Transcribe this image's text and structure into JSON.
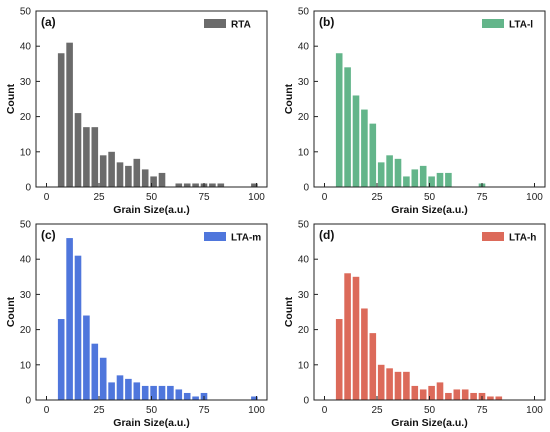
{
  "chart_data": [
    {
      "type": "bar",
      "panel": "(a)",
      "legend": "RTA",
      "color": "#6b6b6b",
      "xlabel": "Grain Size(a.u.)",
      "ylabel": "Count",
      "xlim": [
        -5,
        105
      ],
      "ylim": [
        0,
        50
      ],
      "xticks": [
        0,
        25,
        50,
        75,
        100
      ],
      "yticks": [
        0,
        10,
        20,
        30,
        40,
        50
      ],
      "bin_width": 4,
      "x": [
        7,
        11,
        15,
        19,
        23,
        27,
        31,
        35,
        39,
        43,
        47,
        51,
        55,
        59,
        63,
        67,
        71,
        75,
        79,
        83,
        87,
        91,
        95,
        99
      ],
      "values": [
        38,
        41,
        21,
        17,
        17,
        9,
        10,
        7,
        6,
        8,
        5,
        3,
        4,
        0,
        1,
        1,
        1,
        1,
        1,
        1,
        0,
        0,
        0,
        1
      ]
    },
    {
      "type": "bar",
      "panel": "(b)",
      "legend": "LTA-l",
      "color": "#63b58a",
      "xlabel": "Grain Size(a.u.)",
      "ylabel": "Count",
      "xlim": [
        -5,
        105
      ],
      "ylim": [
        0,
        50
      ],
      "xticks": [
        0,
        25,
        50,
        75,
        100
      ],
      "yticks": [
        0,
        10,
        20,
        30,
        40,
        50
      ],
      "bin_width": 4,
      "x": [
        7,
        11,
        15,
        19,
        23,
        27,
        31,
        35,
        39,
        43,
        47,
        51,
        55,
        59,
        63,
        67,
        71,
        75,
        79,
        83,
        87,
        91,
        95,
        99
      ],
      "values": [
        38,
        34,
        26,
        22,
        18,
        7,
        9,
        8,
        3,
        5,
        6,
        3,
        4,
        4,
        0,
        0,
        0,
        1,
        0,
        0,
        0,
        0,
        0,
        0
      ]
    },
    {
      "type": "bar",
      "panel": "(c)",
      "legend": "LTA-m",
      "color": "#4f76dc",
      "xlabel": "Grain Size(a.u.)",
      "ylabel": "Count",
      "xlim": [
        -5,
        105
      ],
      "ylim": [
        0,
        50
      ],
      "xticks": [
        0,
        25,
        50,
        75,
        100
      ],
      "yticks": [
        0,
        10,
        20,
        30,
        40,
        50
      ],
      "bin_width": 4,
      "x": [
        7,
        11,
        15,
        19,
        23,
        27,
        31,
        35,
        39,
        43,
        47,
        51,
        55,
        59,
        63,
        67,
        71,
        75,
        79,
        83,
        87,
        91,
        95,
        99
      ],
      "values": [
        23,
        46,
        41,
        24,
        16,
        12,
        5,
        7,
        6,
        5,
        4,
        4,
        4,
        4,
        3,
        2,
        1,
        2,
        0,
        0,
        0,
        0,
        0,
        1
      ]
    },
    {
      "type": "bar",
      "panel": "(d)",
      "legend": "LTA-h",
      "color": "#dc6a5a",
      "xlabel": "Grain Size(a.u.)",
      "ylabel": "Count",
      "xlim": [
        -5,
        105
      ],
      "ylim": [
        0,
        50
      ],
      "xticks": [
        0,
        25,
        50,
        75,
        100
      ],
      "yticks": [
        0,
        10,
        20,
        30,
        40,
        50
      ],
      "bin_width": 4,
      "x": [
        7,
        11,
        15,
        19,
        23,
        27,
        31,
        35,
        39,
        43,
        47,
        51,
        55,
        59,
        63,
        67,
        71,
        75,
        79,
        83,
        87,
        91,
        95,
        99
      ],
      "values": [
        23,
        36,
        35,
        26,
        19,
        10,
        9,
        8,
        8,
        4,
        3,
        4,
        5,
        2,
        3,
        3,
        2,
        2,
        1,
        1,
        0,
        0,
        0,
        0
      ]
    }
  ]
}
